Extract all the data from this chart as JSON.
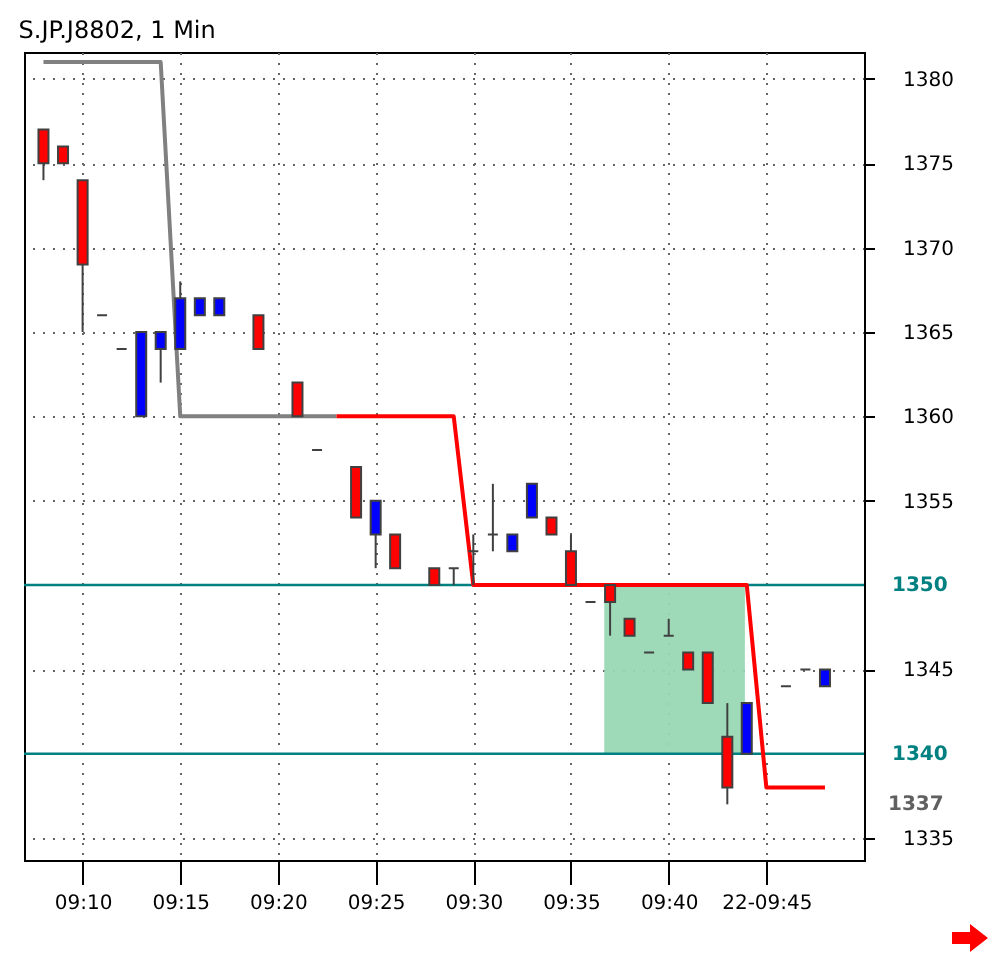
{
  "chart_data": {
    "type": "candlestick",
    "title": "S.JP.J8802, 1 Min",
    "x": [
      9.1333,
      9.15,
      9.1667,
      9.1833,
      9.2,
      9.2167,
      9.2333,
      9.25,
      9.2667,
      9.2833,
      9.3167,
      9.35,
      9.3667,
      9.4,
      9.4167,
      9.4333,
      9.4667,
      9.4833,
      9.5,
      9.5167,
      9.5333,
      9.55,
      9.5667,
      9.5833,
      9.6,
      9.6167,
      9.6333,
      9.65,
      9.6667,
      9.6833,
      9.7,
      9.7167,
      9.7333,
      9.7667,
      9.7833,
      9.8
    ],
    "ohlc": [
      [
        1377,
        1377,
        1374,
        1375
      ],
      [
        1376,
        1376,
        1375,
        1375
      ],
      [
        1374,
        1374,
        1365,
        1369
      ],
      [
        1366,
        1366,
        1366,
        1366
      ],
      [
        1364,
        1364,
        1364,
        1364
      ],
      [
        1360,
        1365,
        1360,
        1365
      ],
      [
        1364,
        1365,
        1362,
        1365
      ],
      [
        1364,
        1368,
        1364,
        1367
      ],
      [
        1366,
        1367,
        1366,
        1367
      ],
      [
        1366,
        1367,
        1366,
        1367
      ],
      [
        1366,
        1366,
        1364,
        1364
      ],
      [
        1362,
        1362,
        1360,
        1360
      ],
      [
        1358,
        1358,
        1358,
        1358
      ],
      [
        1357,
        1357,
        1354,
        1354
      ],
      [
        1353,
        1355,
        1351,
        1355
      ],
      [
        1353,
        1353,
        1351,
        1351
      ],
      [
        1351,
        1351,
        1350,
        1350
      ],
      [
        1351,
        1351,
        1350,
        1351
      ],
      [
        1352,
        1353,
        1350,
        1352
      ],
      [
        1353,
        1356,
        1352,
        1353
      ],
      [
        1352,
        1353,
        1352,
        1353
      ],
      [
        1354,
        1356,
        1354,
        1356
      ],
      [
        1354,
        1354,
        1353,
        1353
      ],
      [
        1352,
        1353,
        1350,
        1350
      ],
      [
        1349,
        1349,
        1349,
        1349
      ],
      [
        1350,
        1350,
        1347,
        1349
      ],
      [
        1348,
        1348,
        1347,
        1347
      ],
      [
        1346,
        1346,
        1346,
        1346
      ],
      [
        1347,
        1348,
        1347,
        1347
      ],
      [
        1346,
        1346,
        1345,
        1345
      ],
      [
        1346,
        1346,
        1343,
        1343
      ],
      [
        1341,
        1343,
        1337,
        1338
      ],
      [
        1340,
        1343,
        1340,
        1343
      ],
      [
        1344,
        1344,
        1344,
        1344
      ],
      [
        1345,
        1345,
        1345,
        1345
      ],
      [
        1344,
        1345,
        1344,
        1345
      ]
    ],
    "colors": [
      "#ff0000",
      "#ff0000",
      "#ff0000",
      "#404040",
      "#404040",
      "#0000ff",
      "#0000ff",
      "#0000ff",
      "#0000ff",
      "#0000ff",
      "#ff0000",
      "#ff0000",
      "#404040",
      "#ff0000",
      "#0000ff",
      "#ff0000",
      "#ff0000",
      "#404040",
      "#404040",
      "#404040",
      "#0000ff",
      "#0000ff",
      "#ff0000",
      "#ff0000",
      "#404040",
      "#ff0000",
      "#ff0000",
      "#404040",
      "#404040",
      "#ff0000",
      "#ff0000",
      "#ff0000",
      "#0000ff",
      "#404040",
      "#404040",
      "#0000ff"
    ],
    "series": [
      {
        "type": "line",
        "color": "#808080",
        "x": [
          9.1333,
          9.2333,
          9.25,
          9.3833
        ],
        "values": [
          1381,
          1381,
          1360,
          1360
        ]
      },
      {
        "type": "line",
        "color": "#ff0000",
        "x": [
          9.3833,
          9.4833,
          9.5,
          9.7333,
          9.75,
          9.8
        ],
        "values": [
          1360,
          1360,
          1350,
          1350,
          1338,
          1338
        ]
      }
    ],
    "ref_lines": [
      {
        "axis": "y",
        "value": 1350,
        "label": "1350",
        "color": "#008080"
      },
      {
        "axis": "y",
        "value": 1340,
        "label": "1340",
        "color": "#008080"
      }
    ],
    "bands": [
      {
        "axis": "x",
        "from": 9.6117,
        "to": 9.7317,
        "color": "#9ad8b4"
      }
    ],
    "annotations": [
      "1337"
    ],
    "xlim": [
      9.1167,
      9.8333
    ],
    "xticks": [
      {
        "value": 9.1667,
        "label": "09:10"
      },
      {
        "value": 9.25,
        "label": "09:15"
      },
      {
        "value": 9.3333,
        "label": "09:20"
      },
      {
        "value": 9.4167,
        "label": "09:25"
      },
      {
        "value": 9.5,
        "label": "09:30"
      },
      {
        "value": 9.5833,
        "label": "09:35"
      },
      {
        "value": 9.6667,
        "label": "09:40"
      },
      {
        "value": 9.75,
        "label": "22-09:45"
      }
    ],
    "ylim": [
      1333.7,
      1381.6
    ],
    "yticks": [
      1335,
      1345,
      1355,
      1360,
      1365,
      1370,
      1375,
      1380
    ],
    "grid": true
  }
}
